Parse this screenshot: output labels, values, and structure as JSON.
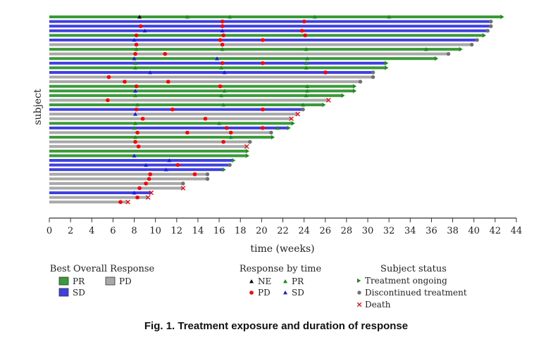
{
  "chart_data": {
    "type": "swimmer",
    "xlabel": "time (weeks)",
    "ylabel": "subject",
    "xlim": [
      0,
      44
    ],
    "xticks": [
      0,
      2,
      4,
      6,
      8,
      10,
      12,
      14,
      16,
      18,
      20,
      22,
      24,
      26,
      28,
      30,
      32,
      34,
      36,
      38,
      40,
      42,
      44
    ],
    "grid": false,
    "colors": {
      "PR": "#3a9a3a",
      "SD": "#4040e0",
      "PD": "#a8a8a8",
      "NE": "#000000",
      "PD_marker": "#ff0000",
      "PR_marker": "#1a8a1a",
      "SD_marker": "#1a1ae0",
      "ongoing": "#1a8a1a",
      "discontinued": "#707070",
      "death": "#ff0000"
    },
    "subjects": [
      {
        "response": "PR",
        "end": 42.5,
        "status": "ongoing",
        "events": [
          {
            "t": 8.5,
            "type": "NE"
          },
          {
            "t": 13,
            "type": "PR"
          },
          {
            "t": 17,
            "type": "PR"
          },
          {
            "t": 25,
            "type": "PR"
          },
          {
            "t": 32,
            "type": "PR"
          }
        ]
      },
      {
        "response": "SD",
        "end": 41.6,
        "status": "discontinued",
        "events": [
          {
            "t": 16.3,
            "type": "PD"
          },
          {
            "t": 24,
            "type": "PD"
          }
        ]
      },
      {
        "response": "SD",
        "end": 41.6,
        "status": "discontinued",
        "events": [
          {
            "t": 8.6,
            "type": "PD"
          },
          {
            "t": 16.3,
            "type": "PD"
          }
        ]
      },
      {
        "response": "SD",
        "end": 41.3,
        "status": "discontinued",
        "events": [
          {
            "t": 9,
            "type": "SD"
          },
          {
            "t": 16.3,
            "type": "SD"
          },
          {
            "t": 23.8,
            "type": "PD"
          }
        ]
      },
      {
        "response": "PR",
        "end": 40.8,
        "status": "ongoing",
        "events": [
          {
            "t": 8.2,
            "type": "PD"
          },
          {
            "t": 16.4,
            "type": "PD"
          },
          {
            "t": 24.1,
            "type": "PD"
          }
        ]
      },
      {
        "response": "SD",
        "end": 40.3,
        "status": "discontinued",
        "events": [
          {
            "t": 8,
            "type": "SD"
          },
          {
            "t": 16.1,
            "type": "PD"
          },
          {
            "t": 20.1,
            "type": "PD"
          }
        ]
      },
      {
        "response": "PD",
        "end": 39.8,
        "status": "discontinued",
        "events": [
          {
            "t": 8.2,
            "type": "PD"
          },
          {
            "t": 16.3,
            "type": "PD"
          }
        ]
      },
      {
        "response": "PR",
        "end": 38.6,
        "status": "ongoing",
        "events": [
          {
            "t": 8.2,
            "type": "PR"
          },
          {
            "t": 16.3,
            "type": "PR"
          },
          {
            "t": 24.2,
            "type": "PR"
          },
          {
            "t": 35.5,
            "type": "PR"
          }
        ]
      },
      {
        "response": "PD",
        "end": 37.6,
        "status": "discontinued",
        "events": [
          {
            "t": 8.1,
            "type": "PD"
          },
          {
            "t": 10.9,
            "type": "PD"
          }
        ]
      },
      {
        "response": "PR",
        "end": 36.3,
        "status": "ongoing",
        "events": [
          {
            "t": 8,
            "type": "SD"
          },
          {
            "t": 15.8,
            "type": "SD"
          },
          {
            "t": 24.3,
            "type": "PR"
          }
        ]
      },
      {
        "response": "SD",
        "end": 31.6,
        "status": "ongoing",
        "events": [
          {
            "t": 8.1,
            "type": "PR"
          },
          {
            "t": 16.3,
            "type": "PD"
          },
          {
            "t": 20.1,
            "type": "PD"
          },
          {
            "t": 24.2,
            "type": "PR"
          }
        ]
      },
      {
        "response": "PR",
        "end": 31.6,
        "status": "ongoing",
        "events": [
          {
            "t": 8.1,
            "type": "PR"
          },
          {
            "t": 16.2,
            "type": "PR"
          },
          {
            "t": 24.2,
            "type": "PR"
          }
        ]
      },
      {
        "response": "SD",
        "end": 30.5,
        "status": "discontinued",
        "events": [
          {
            "t": 9.5,
            "type": "SD"
          },
          {
            "t": 16.5,
            "type": "SD"
          },
          {
            "t": 26,
            "type": "PD"
          }
        ]
      },
      {
        "response": "PD",
        "end": 30.5,
        "status": "discontinued",
        "events": [
          {
            "t": 5.6,
            "type": "PD"
          }
        ]
      },
      {
        "response": "PD",
        "end": 29.3,
        "status": "discontinued",
        "events": [
          {
            "t": 7.1,
            "type": "PD"
          },
          {
            "t": 11.2,
            "type": "PD"
          }
        ]
      },
      {
        "response": "PR",
        "end": 28.6,
        "status": "ongoing",
        "events": [
          {
            "t": 8.2,
            "type": "PD"
          },
          {
            "t": 16.1,
            "type": "PD"
          },
          {
            "t": 24.3,
            "type": "PR"
          }
        ]
      },
      {
        "response": "PR",
        "end": 28.6,
        "status": "ongoing",
        "events": [
          {
            "t": 8.1,
            "type": "SD"
          },
          {
            "t": 16.5,
            "type": "PR"
          },
          {
            "t": 24.3,
            "type": "PR"
          }
        ]
      },
      {
        "response": "PR",
        "end": 27.5,
        "status": "ongoing",
        "events": [
          {
            "t": 8.1,
            "type": "PR"
          },
          {
            "t": 16.2,
            "type": "PR"
          },
          {
            "t": 24.2,
            "type": "PR"
          }
        ]
      },
      {
        "response": "PD",
        "end": 26.3,
        "status": "death",
        "events": [
          {
            "t": 5.5,
            "type": "PD"
          }
        ]
      },
      {
        "response": "PR",
        "end": 25.7,
        "status": "ongoing",
        "events": [
          {
            "t": 8.3,
            "type": "PR"
          },
          {
            "t": 16.4,
            "type": "PR"
          },
          {
            "t": 23.9,
            "type": "PR"
          }
        ]
      },
      {
        "response": "SD",
        "end": 23.9,
        "status": "discontinued",
        "events": [
          {
            "t": 8.2,
            "type": "PD"
          },
          {
            "t": 11.6,
            "type": "PD"
          },
          {
            "t": 20.1,
            "type": "PD"
          }
        ]
      },
      {
        "response": "PD",
        "end": 23.4,
        "status": "death",
        "events": [
          {
            "t": 8.1,
            "type": "SD"
          }
        ]
      },
      {
        "response": "PD",
        "end": 22.8,
        "status": "death",
        "events": [
          {
            "t": 8.8,
            "type": "PD"
          },
          {
            "t": 14.7,
            "type": "PD"
          }
        ]
      },
      {
        "response": "PR",
        "end": 22.8,
        "status": "ongoing",
        "events": [
          {
            "t": 8.1,
            "type": "PR"
          },
          {
            "t": 16,
            "type": "PR"
          }
        ]
      },
      {
        "response": "SD",
        "end": 22.4,
        "status": "ongoing",
        "events": [
          {
            "t": 8,
            "type": "PR"
          },
          {
            "t": 16.7,
            "type": "PD"
          },
          {
            "t": 20.1,
            "type": "PD"
          },
          {
            "t": 21.5,
            "type": "PR"
          }
        ]
      },
      {
        "response": "PD",
        "end": 20.9,
        "status": "discontinued",
        "events": [
          {
            "t": 8.3,
            "type": "PD"
          },
          {
            "t": 13,
            "type": "PD"
          },
          {
            "t": 17.1,
            "type": "PD"
          }
        ]
      },
      {
        "response": "PR",
        "end": 20.9,
        "status": "ongoing",
        "events": [
          {
            "t": 8.1,
            "type": "PR"
          },
          {
            "t": 17.1,
            "type": "PR"
          }
        ]
      },
      {
        "response": "PD",
        "end": 18.9,
        "status": "discontinued",
        "events": [
          {
            "t": 8.1,
            "type": "PD"
          },
          {
            "t": 16.4,
            "type": "PD"
          }
        ]
      },
      {
        "response": "PD",
        "end": 18.6,
        "status": "death",
        "events": [
          {
            "t": 8.4,
            "type": "PD"
          }
        ]
      },
      {
        "response": "PR",
        "end": 18.5,
        "status": "ongoing",
        "events": []
      },
      {
        "response": "PR",
        "end": 18.5,
        "status": "ongoing",
        "events": [
          {
            "t": 8,
            "type": "SD"
          }
        ]
      },
      {
        "response": "SD",
        "end": 17.2,
        "status": "ongoing",
        "events": [
          {
            "t": 11.3,
            "type": "SD"
          }
        ]
      },
      {
        "response": "SD",
        "end": 17,
        "status": "discontinued",
        "events": [
          {
            "t": 9.1,
            "type": "SD"
          },
          {
            "t": 12.1,
            "type": "PD"
          }
        ]
      },
      {
        "response": "SD",
        "end": 16.3,
        "status": "ongoing",
        "events": [
          {
            "t": 11,
            "type": "SD"
          }
        ]
      },
      {
        "response": "PD",
        "end": 14.9,
        "status": "discontinued",
        "events": [
          {
            "t": 9.5,
            "type": "PD"
          },
          {
            "t": 13.7,
            "type": "PD"
          }
        ]
      },
      {
        "response": "PD",
        "end": 14.9,
        "status": "discontinued",
        "events": [
          {
            "t": 9.4,
            "type": "PD"
          }
        ]
      },
      {
        "response": "PD",
        "end": 12.6,
        "status": "discontinued",
        "events": [
          {
            "t": 9.1,
            "type": "PD"
          }
        ]
      },
      {
        "response": "PD",
        "end": 12.6,
        "status": "death",
        "events": [
          {
            "t": 8.5,
            "type": "PD"
          }
        ]
      },
      {
        "response": "SD",
        "end": 9.6,
        "status": "death",
        "events": [
          {
            "t": 8,
            "type": "SD"
          }
        ]
      },
      {
        "response": "PD",
        "end": 9.3,
        "status": "death",
        "events": [
          {
            "t": 8.3,
            "type": "PD"
          }
        ]
      },
      {
        "response": "PD",
        "end": 7.4,
        "status": "death",
        "events": [
          {
            "t": 6.7,
            "type": "PD"
          }
        ]
      }
    ]
  },
  "legend": {
    "best_response": {
      "title": "Best Overall Response",
      "items": [
        {
          "key": "PR",
          "label": "PR"
        },
        {
          "key": "PD",
          "label": "PD"
        },
        {
          "key": "SD",
          "label": "SD"
        }
      ]
    },
    "response_by_time": {
      "title": "Response by time",
      "items": [
        {
          "key": "NE",
          "label": "NE"
        },
        {
          "key": "PR",
          "label": "PR"
        },
        {
          "key": "PD",
          "label": "PD"
        },
        {
          "key": "SD",
          "label": "SD"
        }
      ]
    },
    "subject_status": {
      "title": "Subject status",
      "items": [
        {
          "key": "ongoing",
          "label": "Treatment ongoing"
        },
        {
          "key": "discontinued",
          "label": "Discontinued treatment"
        },
        {
          "key": "death",
          "label": "Death"
        }
      ]
    }
  },
  "caption": "Fig. 1. Treatment exposure and duration of response"
}
